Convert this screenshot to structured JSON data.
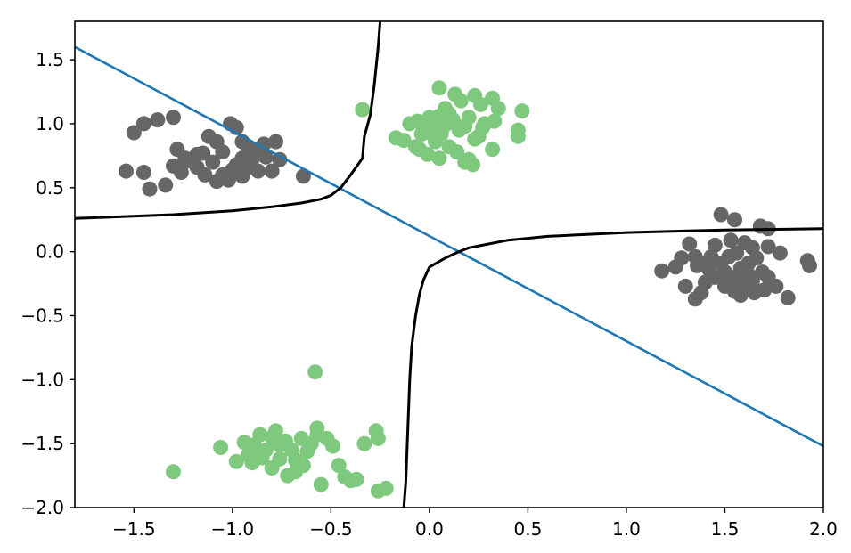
{
  "chart_data": {
    "type": "scatter",
    "title": "",
    "xlabel": "",
    "ylabel": "",
    "xlim": [
      -1.8,
      2.0
    ],
    "ylim": [
      -2.0,
      1.8
    ],
    "x_ticks": [
      -1.5,
      -1.0,
      -0.5,
      0.0,
      0.5,
      1.0,
      1.5,
      2.0
    ],
    "x_tick_labels": [
      "−1.5",
      "−1.0",
      "−0.5",
      "0.0",
      "0.5",
      "1.0",
      "1.5",
      "2.0"
    ],
    "y_ticks": [
      -2.0,
      -1.5,
      -1.0,
      -0.5,
      0.0,
      0.5,
      1.0,
      1.5
    ],
    "y_tick_labels": [
      "−2.0",
      "−1.5",
      "−1.0",
      "−0.5",
      "0.0",
      "0.5",
      "1.0",
      "1.5"
    ],
    "grid": false,
    "colors": {
      "class_a": "#666666",
      "class_b": "#7fc97f",
      "linear_boundary": "#1f77b4",
      "curved_boundary": "#000000"
    },
    "series": [
      {
        "class": "dark-gray",
        "points": [
          [
            -1.5,
            0.93
          ],
          [
            -1.45,
            1.0
          ],
          [
            -1.38,
            1.03
          ],
          [
            -1.3,
            1.05
          ],
          [
            -1.28,
            0.8
          ],
          [
            -1.24,
            0.73
          ],
          [
            -1.18,
            0.76
          ],
          [
            -1.12,
            0.9
          ],
          [
            -1.08,
            0.86
          ],
          [
            -1.05,
            0.78
          ],
          [
            -1.01,
            1.0
          ],
          [
            -0.98,
            0.97
          ],
          [
            -0.95,
            0.86
          ],
          [
            -0.92,
            0.82
          ],
          [
            -0.88,
            0.79
          ],
          [
            -0.84,
            0.84
          ],
          [
            -0.78,
            0.86
          ],
          [
            -1.54,
            0.63
          ],
          [
            -1.45,
            0.62
          ],
          [
            -1.42,
            0.49
          ],
          [
            -1.34,
            0.52
          ],
          [
            -1.3,
            0.67
          ],
          [
            -1.26,
            0.62
          ],
          [
            -1.22,
            0.71
          ],
          [
            -1.18,
            0.66
          ],
          [
            -1.14,
            0.6
          ],
          [
            -1.1,
            0.7
          ],
          [
            -1.05,
            0.6
          ],
          [
            -1.02,
            0.56
          ],
          [
            -0.98,
            0.68
          ],
          [
            -0.95,
            0.59
          ],
          [
            -0.92,
            0.66
          ],
          [
            -0.9,
            0.72
          ],
          [
            -0.87,
            0.63
          ],
          [
            -0.83,
            0.74
          ],
          [
            -0.8,
            0.63
          ],
          [
            -0.76,
            0.72
          ],
          [
            -0.64,
            0.59
          ],
          [
            -1.15,
            0.77
          ],
          [
            -1.0,
            0.64
          ],
          [
            -0.95,
            0.73
          ],
          [
            -1.08,
            0.55
          ],
          [
            1.48,
            0.29
          ],
          [
            1.55,
            0.25
          ],
          [
            1.68,
            0.2
          ],
          [
            1.72,
            0.18
          ],
          [
            1.32,
            0.06
          ],
          [
            1.45,
            0.05
          ],
          [
            1.53,
            0.09
          ],
          [
            1.6,
            0.07
          ],
          [
            1.64,
            0.03
          ],
          [
            1.72,
            0.04
          ],
          [
            1.78,
            -0.01
          ],
          [
            1.92,
            -0.07
          ],
          [
            1.93,
            -0.11
          ],
          [
            1.25,
            -0.12
          ],
          [
            1.18,
            -0.15
          ],
          [
            1.28,
            -0.05
          ],
          [
            1.35,
            -0.04
          ],
          [
            1.38,
            -0.09
          ],
          [
            1.42,
            -0.14
          ],
          [
            1.48,
            -0.09
          ],
          [
            1.52,
            -0.04
          ],
          [
            1.56,
            -0.01
          ],
          [
            1.58,
            -0.13
          ],
          [
            1.62,
            -0.09
          ],
          [
            1.66,
            -0.05
          ],
          [
            1.69,
            -0.16
          ],
          [
            1.72,
            -0.2
          ],
          [
            1.64,
            -0.23
          ],
          [
            1.6,
            -0.27
          ],
          [
            1.55,
            -0.31
          ],
          [
            1.5,
            -0.27
          ],
          [
            1.58,
            -0.34
          ],
          [
            1.65,
            -0.32
          ],
          [
            1.7,
            -0.3
          ],
          [
            1.76,
            -0.27
          ],
          [
            1.82,
            -0.36
          ],
          [
            1.38,
            -0.32
          ],
          [
            1.35,
            -0.37
          ],
          [
            1.3,
            -0.27
          ],
          [
            1.4,
            -0.24
          ],
          [
            1.45,
            -0.2
          ],
          [
            1.62,
            -0.18
          ],
          [
            1.55,
            -0.2
          ],
          [
            1.5,
            -0.16
          ],
          [
            1.43,
            -0.04
          ],
          [
            1.36,
            -0.11
          ]
        ]
      },
      {
        "class": "light-green",
        "points": [
          [
            -0.34,
            1.11
          ],
          [
            -0.17,
            0.89
          ],
          [
            -0.13,
            0.87
          ],
          [
            -0.1,
            1.0
          ],
          [
            -0.06,
            1.02
          ],
          [
            -0.04,
            0.92
          ],
          [
            -0.02,
            0.98
          ],
          [
            0.0,
            1.05
          ],
          [
            0.03,
            0.98
          ],
          [
            0.05,
            1.06
          ],
          [
            0.06,
            0.92
          ],
          [
            0.08,
            0.99
          ],
          [
            0.1,
            1.08
          ],
          [
            0.12,
            1.03
          ],
          [
            0.15,
            0.95
          ],
          [
            0.18,
            0.98
          ],
          [
            0.2,
            1.05
          ],
          [
            0.23,
            1.22
          ],
          [
            0.16,
            1.18
          ],
          [
            0.26,
            1.15
          ],
          [
            0.32,
            1.2
          ],
          [
            0.35,
            1.12
          ],
          [
            0.47,
            1.1
          ],
          [
            0.45,
            0.95
          ],
          [
            0.45,
            0.9
          ],
          [
            0.33,
            1.02
          ],
          [
            0.28,
            1.0
          ],
          [
            0.03,
            0.86
          ],
          [
            0.1,
            0.82
          ],
          [
            0.14,
            0.78
          ],
          [
            0.18,
            0.7
          ],
          [
            0.22,
            0.68
          ],
          [
            0.2,
            0.72
          ],
          [
            0.32,
            0.8
          ],
          [
            0.23,
            0.88
          ],
          [
            -0.05,
            0.8
          ],
          [
            -0.01,
            0.76
          ],
          [
            0.05,
            0.73
          ],
          [
            0.05,
            1.28
          ],
          [
            0.13,
            1.23
          ],
          [
            0.27,
            0.97
          ],
          [
            -0.07,
            0.82
          ],
          [
            0.0,
            0.93
          ],
          [
            0.08,
            1.12
          ],
          [
            0.25,
            0.9
          ],
          [
            -0.58,
            -0.94
          ],
          [
            -1.3,
            -1.72
          ],
          [
            -1.06,
            -1.53
          ],
          [
            -0.98,
            -1.64
          ],
          [
            -0.92,
            -1.59
          ],
          [
            -0.89,
            -1.51
          ],
          [
            -0.86,
            -1.43
          ],
          [
            -0.83,
            -1.55
          ],
          [
            -0.8,
            -1.45
          ],
          [
            -0.78,
            -1.4
          ],
          [
            -0.76,
            -1.51
          ],
          [
            -0.73,
            -1.48
          ],
          [
            -0.7,
            -1.55
          ],
          [
            -0.68,
            -1.63
          ],
          [
            -0.65,
            -1.46
          ],
          [
            -0.6,
            -1.5
          ],
          [
            -0.57,
            -1.43
          ],
          [
            -0.57,
            -1.38
          ],
          [
            -0.52,
            -1.46
          ],
          [
            -0.49,
            -1.52
          ],
          [
            -0.46,
            -1.67
          ],
          [
            -0.43,
            -1.76
          ],
          [
            -0.4,
            -1.79
          ],
          [
            -0.37,
            -1.78
          ],
          [
            -0.33,
            -1.5
          ],
          [
            -0.27,
            -1.4
          ],
          [
            -0.26,
            -1.46
          ],
          [
            -0.26,
            -1.87
          ],
          [
            -0.22,
            -1.85
          ],
          [
            -0.94,
            -1.49
          ],
          [
            -0.9,
            -1.65
          ],
          [
            -0.85,
            -1.61
          ],
          [
            -0.8,
            -1.69
          ],
          [
            -0.72,
            -1.75
          ],
          [
            -0.68,
            -1.72
          ],
          [
            -0.64,
            -1.67
          ],
          [
            -0.55,
            -1.82
          ],
          [
            -0.76,
            -1.62
          ],
          [
            -0.62,
            -1.56
          ],
          [
            -0.88,
            -1.57
          ]
        ]
      }
    ],
    "linear_boundary": [
      [
        -1.8,
        1.6
      ],
      [
        2.0,
        -1.52
      ]
    ],
    "curved_boundary_segments": [
      [
        [
          -0.25,
          1.8
        ],
        [
          -0.26,
          1.6
        ],
        [
          -0.28,
          1.3
        ],
        [
          -0.3,
          1.07
        ],
        [
          -0.33,
          0.9
        ],
        [
          -0.34,
          0.73
        ],
        [
          -0.4,
          0.6
        ],
        [
          -0.45,
          0.5
        ],
        [
          -0.5,
          0.44
        ],
        [
          -0.55,
          0.41
        ],
        [
          -0.65,
          0.38
        ],
        [
          -0.8,
          0.35
        ],
        [
          -1.0,
          0.32
        ],
        [
          -1.3,
          0.29
        ],
        [
          -1.8,
          0.26
        ]
      ],
      [
        [
          2.0,
          0.18
        ],
        [
          1.5,
          0.17
        ],
        [
          1.0,
          0.15
        ],
        [
          0.6,
          0.12
        ],
        [
          0.4,
          0.09
        ],
        [
          0.3,
          0.06
        ],
        [
          0.2,
          0.03
        ],
        [
          0.15,
          0.0
        ],
        [
          0.08,
          -0.05
        ],
        [
          0.0,
          -0.12
        ],
        [
          -0.03,
          -0.22
        ],
        [
          -0.05,
          -0.33
        ],
        [
          -0.07,
          -0.5
        ],
        [
          -0.09,
          -0.74
        ],
        [
          -0.1,
          -1.0
        ],
        [
          -0.11,
          -1.4
        ],
        [
          -0.12,
          -1.8
        ],
        [
          -0.13,
          -2.0
        ]
      ]
    ]
  }
}
